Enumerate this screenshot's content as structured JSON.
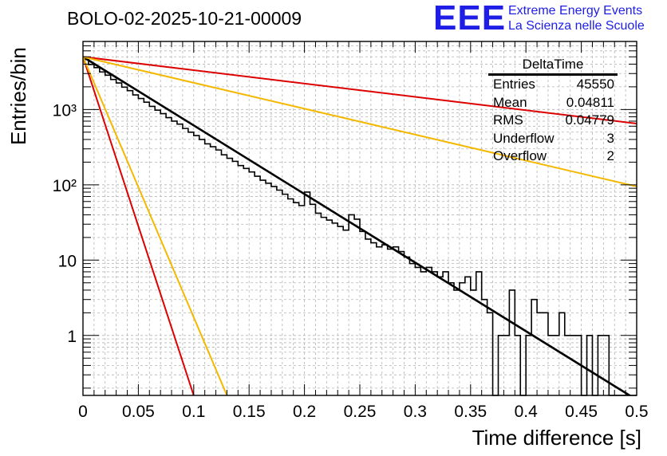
{
  "title": "BOLO-02-2025-10-21-00009",
  "logo": {
    "mark": "EEE",
    "line1": "Extreme Energy Events",
    "line2": "La Scienza nelle Scuole",
    "color": "#1e1ee6"
  },
  "stats": {
    "name": "DeltaTime",
    "rows": [
      {
        "label": "Entries",
        "value": "45550"
      },
      {
        "label": "Mean",
        "value": "0.04811"
      },
      {
        "label": "RMS",
        "value": "0.04779"
      },
      {
        "label": "Underflow",
        "value": "3"
      },
      {
        "label": "Overflow",
        "value": "2"
      }
    ]
  },
  "chart_data": {
    "type": "line",
    "title": "BOLO-02-2025-10-21-00009",
    "xlabel": "Time difference [s]",
    "ylabel": "Entries/bin",
    "xlim": [
      0,
      0.5
    ],
    "ylim": [
      0.16,
      8000
    ],
    "yscale": "log",
    "grid": true,
    "x_ticks": [
      0,
      0.05,
      0.1,
      0.15,
      0.2,
      0.25,
      0.3,
      0.35,
      0.4,
      0.45,
      0.5
    ],
    "x_tick_labels": [
      "0",
      "0.05",
      "0.1",
      "0.15",
      "0.2",
      "0.25",
      "0.3",
      "0.35",
      "0.4",
      "0.45",
      "0.5"
    ],
    "y_ticks": [
      1,
      10,
      100,
      1000
    ],
    "y_tick_labels": [
      "1",
      "10",
      "10²",
      "10³"
    ],
    "histogram": {
      "name": "DeltaTime",
      "bin_width": 0.005,
      "color": "#000000",
      "counts": [
        4600,
        3950,
        3600,
        3150,
        2850,
        2500,
        2250,
        1980,
        1780,
        1560,
        1400,
        1250,
        1100,
        980,
        880,
        780,
        700,
        640,
        560,
        500,
        450,
        400,
        350,
        320,
        290,
        250,
        225,
        205,
        180,
        165,
        148,
        130,
        115,
        105,
        95,
        85,
        75,
        65,
        58,
        53,
        80,
        55,
        42,
        37,
        34,
        31,
        28,
        25,
        40,
        35,
        24,
        19,
        17,
        15,
        16,
        14,
        15,
        13,
        11,
        9,
        8,
        7,
        8,
        7,
        6,
        7,
        5,
        4,
        5,
        6,
        4,
        7,
        3,
        2,
        0,
        1,
        1,
        4,
        1,
        0,
        1,
        3,
        2,
        2,
        1,
        1,
        2,
        1,
        1,
        1,
        0,
        1,
        0,
        1,
        1,
        0,
        0,
        0,
        0,
        0
      ]
    },
    "series": [
      {
        "name": "exponential fit",
        "color": "#000000",
        "x": [
          0,
          0.5
        ],
        "y": [
          5000,
          0.14
        ]
      },
      {
        "name": "slow upper",
        "color": "#dd0000",
        "x": [
          0,
          0.5
        ],
        "y": [
          5000,
          650
        ]
      },
      {
        "name": "slow lower",
        "color": "#f5b800",
        "x": [
          0,
          0.5
        ],
        "y": [
          5000,
          95
        ]
      },
      {
        "name": "fast lower",
        "color": "#dd0000",
        "x": [
          0,
          0.1
        ],
        "y": [
          5000,
          0.16
        ]
      },
      {
        "name": "fast upper",
        "color": "#f5b800",
        "x": [
          0,
          0.13
        ],
        "y": [
          5000,
          0.16
        ]
      }
    ]
  }
}
